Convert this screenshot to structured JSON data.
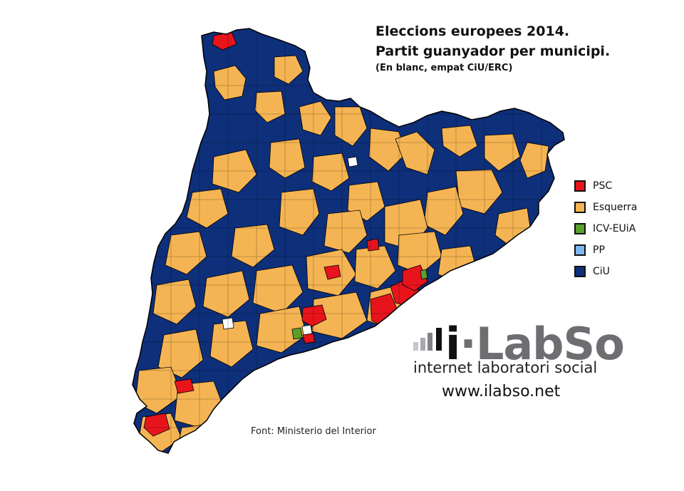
{
  "title": {
    "line1": "Eleccions europees 2014.",
    "line2": "Partit guanyador per municipi.",
    "note": "(En blanc, empat CiU/ERC)"
  },
  "legend": [
    {
      "label": "PSC",
      "color": "#e8141c"
    },
    {
      "label": "Esquerra",
      "color": "#f5b453"
    },
    {
      "label": "ICV-EUiA",
      "color": "#5aa02c"
    },
    {
      "label": "PP",
      "color": "#7fb8f0"
    },
    {
      "label": "CiU",
      "color": "#0e2f7a"
    }
  ],
  "colors": {
    "ciu": "#0e2f7a",
    "esquerra": "#f5b453",
    "psc": "#e8141c",
    "icv": "#5aa02c",
    "tie": "#ffffff",
    "border": "#000000"
  },
  "logo": {
    "brand_prefix": "i",
    "brand_main": "LabSo",
    "tagline": "internet laboratori social",
    "url": "www.ilabso.net"
  },
  "source": "Font: Ministerio del Interior"
}
